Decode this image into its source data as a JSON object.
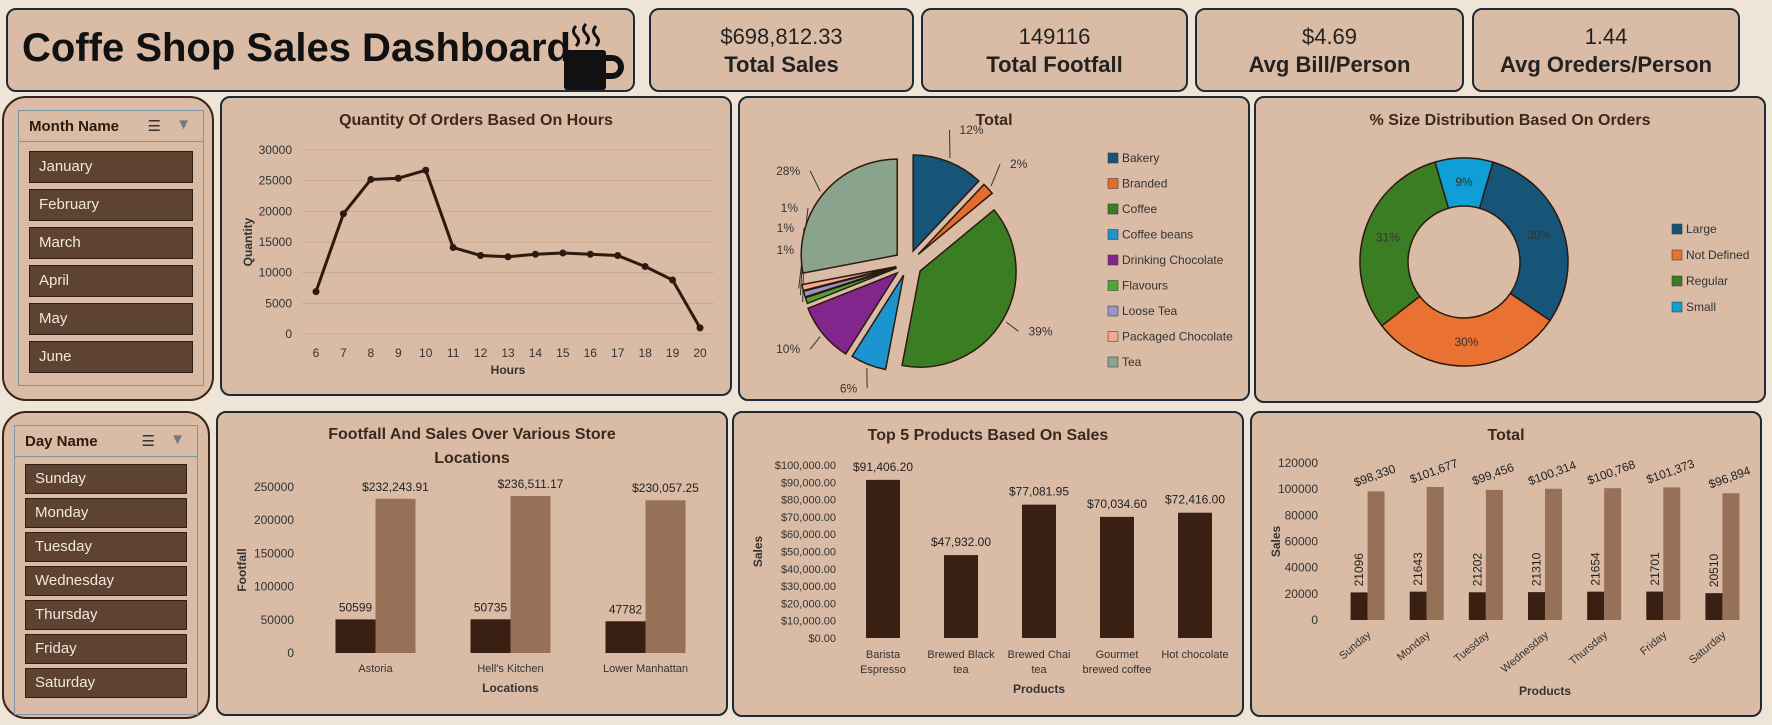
{
  "dashboard": {
    "title": "Coffe Shop Sales Dashboard"
  },
  "kpis": [
    {
      "value": "$698,812.33",
      "label": "Total Sales"
    },
    {
      "value": "149116",
      "label": "Total Footfall"
    },
    {
      "value": "$4.69",
      "label": "Avg Bill/Person"
    },
    {
      "value": "1.44",
      "label": "Avg Oreders/Person"
    }
  ],
  "month_slicer": {
    "title": "Month Name",
    "items": [
      "January",
      "February",
      "March",
      "April",
      "May",
      "June"
    ]
  },
  "day_slicer": {
    "title": "Day Name",
    "items": [
      "Sunday",
      "Monday",
      "Tuesday",
      "Wednesday",
      "Thursday",
      "Friday",
      "Saturday"
    ]
  },
  "colors": {
    "dark": "#3a2012",
    "light": "#977157",
    "panel": "#dabba6",
    "line": "#2e1a0e"
  },
  "chart_data": [
    {
      "id": "hours",
      "type": "line",
      "title": "Quantity Of Orders Based On Hours",
      "xlabel": "Hours",
      "ylabel": "Quantity",
      "x": [
        6,
        7,
        8,
        9,
        10,
        11,
        12,
        13,
        14,
        15,
        16,
        17,
        18,
        19,
        20
      ],
      "values": [
        6900,
        19600,
        25200,
        25400,
        26700,
        14100,
        12800,
        12600,
        13000,
        13200,
        13000,
        12800,
        11000,
        8800,
        1000
      ],
      "ylim": [
        0,
        30000
      ],
      "yticks": [
        "30000",
        "25000",
        "20000",
        "15000",
        "10000",
        "5000",
        "0"
      ],
      "xticks": [
        "6",
        "7",
        "8",
        "9",
        "10",
        "11",
        "12",
        "13",
        "14",
        "15",
        "16",
        "17",
        "18",
        "19",
        "20"
      ]
    },
    {
      "id": "category",
      "type": "pie",
      "title": "Total",
      "categories": [
        "Bakery",
        "Branded",
        "Coffee",
        "Coffee beans",
        "Drinking Chocolate",
        "Flavours",
        "Loose Tea",
        "Packaged Chocolate",
        "Tea"
      ],
      "values": [
        12,
        2,
        39,
        6,
        10,
        1,
        1,
        1,
        28
      ],
      "labels": [
        "12%",
        "2%",
        "39%",
        "6%",
        "10%",
        "1%",
        "1%",
        "1%",
        "28%"
      ],
      "colors": [
        "#165478",
        "#e46c2c",
        "#3b7d23",
        "#1b94d0",
        "#82268e",
        "#4ea72e",
        "#9895c2",
        "#f1a98f",
        "#8aa38c"
      ]
    },
    {
      "id": "size",
      "type": "pie",
      "title": "% Size Distribution Based On Orders",
      "categories": [
        "Large",
        "Not Defined",
        "Regular",
        "Small"
      ],
      "values": [
        30,
        30,
        31,
        9
      ],
      "labels": [
        "30%",
        "30%",
        "31%",
        "9%"
      ],
      "colors": [
        "#165478",
        "#e97132",
        "#3b7d23",
        "#0f9ed5"
      ]
    },
    {
      "id": "locations",
      "type": "bar",
      "title": "Footfall And Sales Over Various Store Locations",
      "xlabel": "Locations",
      "ylabel": "Footfall",
      "categories": [
        "Astoria",
        "Hell's Kitchen",
        "Lower Manhattan"
      ],
      "series": [
        {
          "name": "Footfall",
          "values": [
            50599,
            50735,
            47782
          ],
          "labels": [
            "50599",
            "50735",
            "47782"
          ]
        },
        {
          "name": "Sales",
          "values": [
            232243.91,
            236511.17,
            230057.25
          ],
          "labels": [
            "$232,243.91",
            "$236,511.17",
            "$230,057.25"
          ]
        }
      ],
      "ylim": [
        0,
        250000
      ],
      "yticks": [
        "250000",
        "200000",
        "150000",
        "100000",
        "50000",
        "0"
      ]
    },
    {
      "id": "products",
      "type": "bar",
      "title": "Top 5 Products  Based On Sales",
      "xlabel": "Products",
      "ylabel": "Sales",
      "categories": [
        [
          "Barista",
          "Espresso"
        ],
        [
          "Brewed Black",
          "tea"
        ],
        [
          "Brewed Chai",
          "tea"
        ],
        [
          "Gourmet",
          "brewed coffee"
        ],
        [
          "Hot chocolate"
        ]
      ],
      "values": [
        91406.2,
        47932.0,
        77081.95,
        70034.6,
        72416.0
      ],
      "labels": [
        "$91,406.20",
        "$47,932.00",
        "$77,081.95",
        "$70,034.60",
        "$72,416.00"
      ],
      "ylim": [
        0,
        100000
      ],
      "yticks": [
        "$100,000.00",
        "$90,000.00",
        "$80,000.00",
        "$70,000.00",
        "$60,000.00",
        "$50,000.00",
        "$40,000.00",
        "$30,000.00",
        "$20,000.00",
        "$10,000.00",
        "$0.00"
      ]
    },
    {
      "id": "days",
      "type": "bar",
      "title": "Total",
      "xlabel": "Products",
      "ylabel": "Sales",
      "categories": [
        "Sunday",
        "Monday",
        "Tuesday",
        "Wednesday",
        "Thursday",
        "Friday",
        "Saturday"
      ],
      "series": [
        {
          "name": "Footfall",
          "values": [
            21096,
            21643,
            21202,
            21310,
            21654,
            21701,
            20510
          ],
          "labels": [
            "21096",
            "21643",
            "21202",
            "21310",
            "21654",
            "21701",
            "20510"
          ]
        },
        {
          "name": "Sales",
          "values": [
            98330,
            101677,
            99456,
            100314,
            100768,
            101373,
            96894
          ],
          "labels": [
            "$98,330",
            "$101,677",
            "$99,456",
            "$100,314",
            "$100,768",
            "$101,373",
            "$96,894"
          ]
        }
      ],
      "ylim": [
        0,
        120000
      ],
      "yticks": [
        "120000",
        "100000",
        "80000",
        "60000",
        "40000",
        "20000",
        "0"
      ]
    }
  ]
}
